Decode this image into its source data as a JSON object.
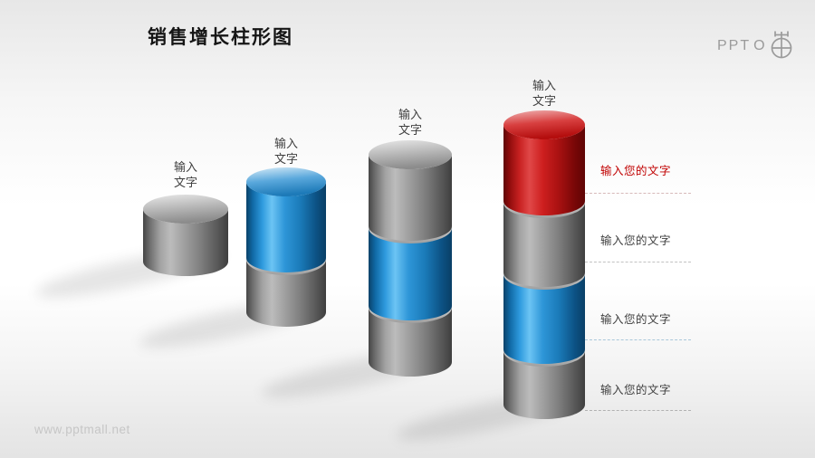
{
  "header": {
    "title": "销售增长柱形图"
  },
  "logo": {
    "text": "PPT",
    "o": "O",
    "icon": "pot-scale-icon"
  },
  "footer": {
    "watermark": "www.pptmall.net"
  },
  "palette": {
    "gray": "#8a8a8a",
    "blue": "#1e8fd0",
    "red": "#c81414",
    "title_text": "#151515",
    "label_text": "#3f3f3f",
    "annotation_red": "#c00000",
    "logo_gray": "#9b9b9b",
    "watermark_text": "#c6c6c6"
  },
  "chart_data": {
    "type": "bar",
    "subtype": "stacked-3d-cylinder-columns",
    "title": "销售增长柱形图",
    "categories": [
      "输入文字",
      "输入文字",
      "输入文字",
      "输入文字"
    ],
    "columns": [
      {
        "label_line1": "输入",
        "label_line2": "文字",
        "segment_count": 1,
        "segments": [
          "gray"
        ]
      },
      {
        "label_line1": "输入",
        "label_line2": "文字",
        "segment_count": 2,
        "segments": [
          "blue",
          "gray"
        ]
      },
      {
        "label_line1": "输入",
        "label_line2": "文字",
        "segment_count": 3,
        "segments": [
          "gray",
          "blue",
          "gray"
        ]
      },
      {
        "label_line1": "输入",
        "label_line2": "文字",
        "segment_count": 4,
        "segments": [
          "red",
          "gray",
          "blue",
          "gray"
        ]
      }
    ],
    "values_relative": [
      1,
      2,
      3,
      4
    ],
    "legend": "none",
    "axes": "none"
  },
  "annotations": [
    {
      "text": "输入您的文字",
      "color": "#c00000",
      "line_color": "#d6b9b9"
    },
    {
      "text": "输入您的文字",
      "color": "#3f3f3f",
      "line_color": "#c2c2c2"
    },
    {
      "text": "输入您的文字",
      "color": "#3f3f3f",
      "line_color": "#a9c7da"
    },
    {
      "text": "输入您的文字",
      "color": "#3f3f3f",
      "line_color": "#b2b2b2"
    }
  ]
}
